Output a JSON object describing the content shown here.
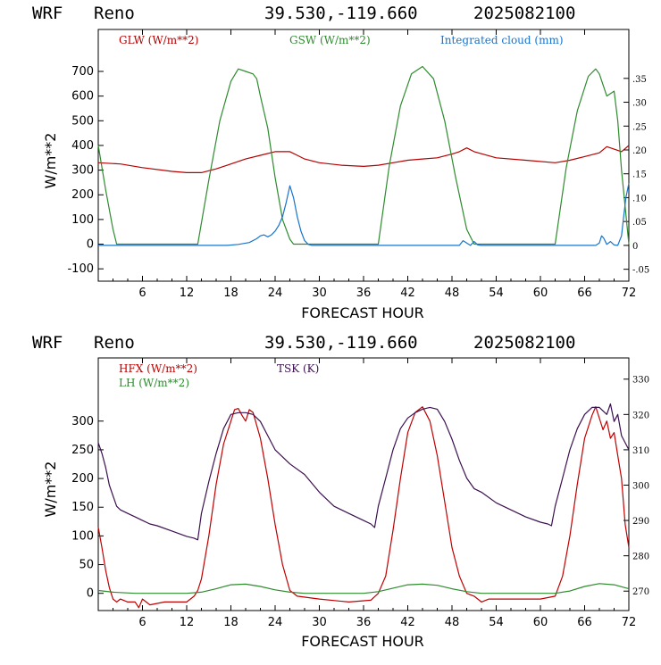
{
  "chart_data": [
    {
      "type": "line",
      "header": {
        "model": "WRF",
        "site": "Reno",
        "coords": "39.530,-119.660",
        "run": "2025082100"
      },
      "xlabel": "FORECAST HOUR",
      "ylabel": "W/m**2",
      "xlim": [
        0,
        72
      ],
      "ylim": [
        -150,
        870
      ],
      "y2lim": [
        -0.075,
        0.4525
      ],
      "xticks": [
        "6",
        "12",
        "18",
        "24",
        "30",
        "36",
        "42",
        "48",
        "54",
        "60",
        "66",
        "72"
      ],
      "yticks": [
        "-100",
        "0",
        "100",
        "200",
        "300",
        "400",
        "500",
        "600",
        "700"
      ],
      "y2ticks": [
        "-.05",
        "0",
        ".05",
        ".10",
        ".15",
        ".20",
        ".25",
        ".30",
        ".35"
      ],
      "series": [
        {
          "name": "GLW (W/m**2)",
          "axis": "left",
          "color": "#b40000",
          "x": [
            0,
            3,
            6,
            10,
            12,
            14,
            16,
            18,
            20,
            22,
            24,
            26,
            27,
            28,
            30,
            33,
            36,
            38,
            40,
            42,
            44,
            46,
            48,
            49,
            50,
            51,
            54,
            58,
            62,
            64,
            66,
            68,
            69,
            70,
            71,
            72
          ],
          "y": [
            330,
            325,
            310,
            295,
            290,
            290,
            305,
            325,
            345,
            360,
            375,
            375,
            360,
            345,
            330,
            320,
            315,
            320,
            330,
            340,
            345,
            350,
            365,
            375,
            390,
            375,
            350,
            340,
            330,
            340,
            355,
            370,
            395,
            385,
            375,
            400
          ]
        },
        {
          "name": "GSW (W/m**2)",
          "axis": "left",
          "color": "#2e8b2e",
          "x": [
            0,
            1,
            2,
            2.5,
            13.5,
            15,
            16.5,
            18,
            19,
            20,
            21,
            21.5,
            22,
            23,
            24,
            25,
            26,
            26.5,
            38,
            39.5,
            41,
            42.5,
            44,
            45.5,
            47,
            48.5,
            50,
            51,
            62,
            63.5,
            65,
            66.5,
            67.5,
            68,
            69,
            70,
            70.5,
            71,
            72
          ],
          "y": [
            400,
            220,
            60,
            0,
            0,
            260,
            500,
            660,
            710,
            700,
            690,
            670,
            600,
            470,
            270,
            100,
            20,
            0,
            0,
            320,
            560,
            690,
            720,
            670,
            500,
            270,
            60,
            0,
            0,
            310,
            540,
            680,
            710,
            690,
            600,
            620,
            500,
            300,
            0
          ]
        },
        {
          "name": "Integrated cloud (mm)",
          "axis": "right",
          "color": "#1874cd",
          "x": [
            0,
            17.5,
            19,
            20.5,
            21.5,
            22,
            22.5,
            23,
            23.5,
            24,
            24.5,
            25,
            25.5,
            26,
            26.5,
            27,
            27.5,
            28,
            28.5,
            29,
            49,
            49.5,
            50,
            50.5,
            51,
            51.5,
            52,
            56,
            67.5,
            68,
            68.3,
            68.6,
            69,
            69.5,
            70,
            70.5,
            71,
            71.3,
            71.6,
            72
          ],
          "y": [
            0,
            0,
            0.002,
            0.006,
            0.014,
            0.02,
            0.022,
            0.018,
            0.022,
            0.03,
            0.042,
            0.06,
            0.09,
            0.125,
            0.1,
            0.06,
            0.03,
            0.01,
            0.002,
            0,
            0,
            0.01,
            0.005,
            0,
            0.008,
            0.001,
            0,
            0,
            0,
            0.005,
            0.02,
            0.015,
            0.002,
            0.008,
            0.001,
            0,
            0.02,
            0.06,
            0.1,
            0.13
          ]
        }
      ]
    },
    {
      "type": "line",
      "header": {
        "model": "WRF",
        "site": "Reno",
        "coords": "39.530,-119.660",
        "run": "2025082100"
      },
      "xlabel": "FORECAST HOUR",
      "ylabel": "W/m**2",
      "xlim": [
        0,
        72
      ],
      "ylim": [
        -30,
        410
      ],
      "y2lim": [
        264.5,
        336
      ],
      "xticks": [
        "6",
        "12",
        "18",
        "24",
        "30",
        "36",
        "42",
        "48",
        "54",
        "60",
        "66",
        "72"
      ],
      "yticks": [
        "0",
        "50",
        "100",
        "150",
        "200",
        "250",
        "300"
      ],
      "y2ticks": [
        "270",
        "280",
        "290",
        "300",
        "310",
        "320",
        "330"
      ],
      "series": [
        {
          "name": "HFX (W/m**2)",
          "axis": "left",
          "color": "#c00000",
          "x": [
            0,
            0.5,
            1,
            1.5,
            2,
            2.5,
            3,
            4,
            5,
            5.5,
            6,
            7,
            9,
            12,
            13,
            13.5,
            14,
            15,
            16,
            17,
            18,
            18.5,
            19,
            19.5,
            20,
            20.5,
            21,
            22,
            23,
            24,
            25,
            26,
            27,
            30,
            34,
            37,
            38,
            39,
            40,
            41,
            42,
            43,
            44,
            45,
            46,
            47,
            48,
            49,
            50,
            51,
            52,
            53,
            56,
            60,
            62,
            63,
            64,
            65,
            66,
            67,
            67.5,
            68,
            68.5,
            69,
            69.5,
            70,
            70.5,
            71,
            71.5,
            72
          ],
          "y": [
            115,
            80,
            40,
            10,
            -10,
            -15,
            -10,
            -15,
            -15,
            -25,
            -10,
            -20,
            -15,
            -15,
            -5,
            5,
            25,
            100,
            190,
            260,
            300,
            320,
            322,
            310,
            300,
            320,
            315,
            270,
            200,
            120,
            50,
            5,
            -5,
            -10,
            -15,
            -12,
            0,
            30,
            110,
            200,
            280,
            315,
            325,
            300,
            240,
            160,
            80,
            30,
            0,
            -5,
            -15,
            -10,
            -10,
            -10,
            -5,
            30,
            100,
            190,
            270,
            310,
            325,
            305,
            285,
            300,
            270,
            280,
            240,
            200,
            120,
            80
          ]
        },
        {
          "name": "LH (W/m**2)",
          "axis": "left",
          "color": "#2e8b2e",
          "x": [
            0,
            2,
            5,
            8,
            12,
            14,
            16,
            18,
            20,
            22,
            24,
            26,
            28,
            36,
            38,
            40,
            42,
            44,
            46,
            48,
            50,
            52,
            62,
            64,
            66,
            68,
            70,
            72
          ],
          "y": [
            5,
            2,
            0,
            0,
            0,
            2,
            8,
            15,
            16,
            12,
            6,
            2,
            0,
            0,
            3,
            9,
            15,
            16,
            14,
            8,
            3,
            0,
            0,
            4,
            12,
            17,
            15,
            8
          ]
        },
        {
          "name": "TSK (K)",
          "axis": "right",
          "color": "#3b1050",
          "x": [
            0,
            0.5,
            1,
            1.5,
            2,
            2.5,
            3,
            4,
            5,
            6,
            7,
            8,
            10,
            12,
            13,
            13.5,
            14,
            15,
            16,
            17,
            18,
            19,
            20,
            21,
            22,
            23,
            24,
            26,
            28,
            30,
            32,
            34,
            36,
            37,
            37.5,
            38,
            39,
            40,
            41,
            42,
            43,
            44,
            45,
            46,
            47,
            48,
            49,
            50,
            51,
            52,
            54,
            56,
            58,
            60,
            61,
            61.5,
            62,
            63,
            64,
            65,
            66,
            67,
            68,
            69,
            69.5,
            70,
            70.5,
            71,
            71.5,
            72
          ],
          "y": [
            312,
            309,
            305,
            300,
            297,
            294,
            293,
            292,
            291,
            290,
            289,
            288.5,
            287,
            285.5,
            285,
            284.5,
            292,
            301,
            309,
            316,
            320,
            320.5,
            320.5,
            320,
            318,
            314,
            310,
            306,
            303,
            298,
            294,
            292,
            290,
            289,
            288,
            294,
            302,
            310,
            316,
            319,
            320.5,
            321.5,
            322,
            321.5,
            318,
            313,
            307,
            302,
            299,
            298,
            295,
            293,
            291,
            289.5,
            289,
            288.5,
            294,
            302,
            310,
            316,
            320,
            322,
            322,
            320,
            323,
            318,
            320,
            314,
            312,
            310
          ]
        }
      ]
    }
  ]
}
